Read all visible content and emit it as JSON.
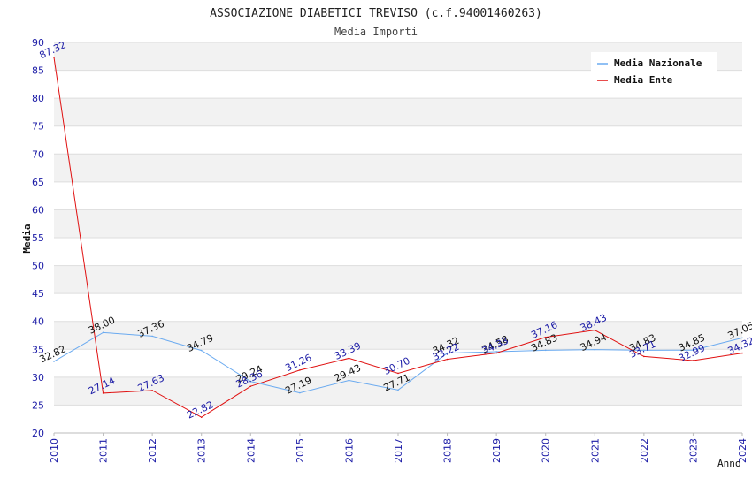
{
  "chart_data": {
    "type": "line",
    "title": "ASSOCIAZIONE DIABETICI TREVISO (c.f.94001460263)",
    "subtitle": "Media Importi",
    "xlabel": "Anno",
    "ylabel": "Media",
    "ylim": [
      20,
      90
    ],
    "yticks": [
      "20",
      "25",
      "30",
      "35",
      "40",
      "45",
      "50",
      "55",
      "60",
      "65",
      "70",
      "75",
      "80",
      "85",
      "90"
    ],
    "categories": [
      "2010",
      "2011",
      "2012",
      "2013",
      "2014",
      "2015",
      "2016",
      "2017",
      "2018",
      "2019",
      "2020",
      "2021",
      "2022",
      "2023",
      "2024"
    ],
    "legend_position": "top-right",
    "series": [
      {
        "name": "Media Nazionale",
        "color": "#6aaaf0",
        "label_color": "#111111",
        "values": [
          32.82,
          38.0,
          37.36,
          34.79,
          29.24,
          27.19,
          29.43,
          27.71,
          34.32,
          34.58,
          34.83,
          34.94,
          34.83,
          34.85,
          37.05
        ],
        "labels": [
          "32.82",
          "38.00",
          "37.36",
          "34.79",
          "29.24",
          "27.19",
          "29.43",
          "27.71",
          "34.32",
          "34.58",
          "34.83",
          "34.94",
          "34.83",
          "34.85",
          "37.05"
        ]
      },
      {
        "name": "Media Ente",
        "color": "#e01010",
        "label_color": "#1a1aa6",
        "values": [
          87.32,
          27.14,
          27.63,
          22.82,
          28.36,
          31.26,
          33.39,
          30.7,
          33.22,
          34.33,
          37.16,
          38.43,
          33.71,
          32.99,
          34.32
        ],
        "labels": [
          "87.32",
          "27.14",
          "27.63",
          "22.82",
          "28.36",
          "31.26",
          "33.39",
          "30.70",
          "33.22",
          "34.33",
          "37.16",
          "38.43",
          "33.71",
          "32.99",
          "34.32"
        ]
      }
    ]
  }
}
